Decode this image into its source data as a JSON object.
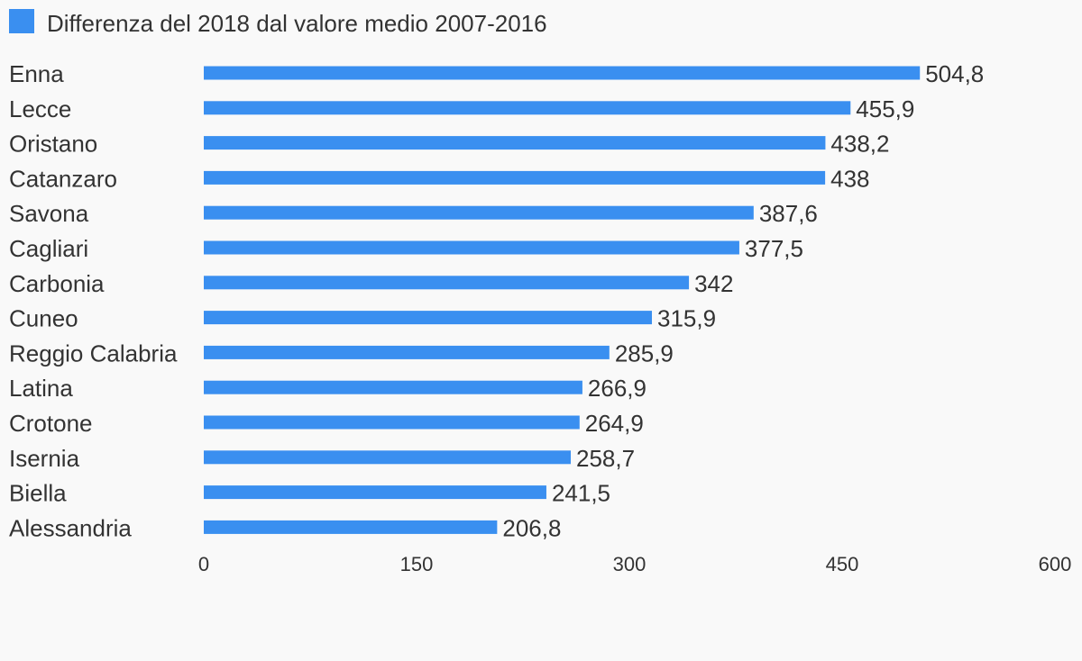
{
  "chart_data": {
    "type": "bar",
    "orientation": "horizontal",
    "legend": {
      "label": "Differenza del 2018 dal valore medio 2007-2016",
      "color": "#3a8ff0",
      "position": "top-left"
    },
    "categories": [
      "Enna",
      "Lecce",
      "Oristano",
      "Catanzaro",
      "Savona",
      "Cagliari",
      "Carbonia",
      "Cuneo",
      "Reggio Calabria",
      "Latina",
      "Crotone",
      "Isernia",
      "Biella",
      "Alessandria"
    ],
    "values": [
      504.8,
      455.9,
      438.2,
      438,
      387.6,
      377.5,
      342,
      315.9,
      285.9,
      266.9,
      264.9,
      258.7,
      241.5,
      206.8
    ],
    "value_labels": [
      "504,8",
      "455,9",
      "438,2",
      "438",
      "387,6",
      "377,5",
      "342",
      "315,9",
      "285,9",
      "266,9",
      "264,9",
      "258,7",
      "241,5",
      "206,8"
    ],
    "xlim": [
      0,
      600
    ],
    "xticks": [
      0,
      150,
      300,
      450,
      600
    ],
    "xtick_labels": [
      "0",
      "150",
      "300",
      "450",
      "600"
    ],
    "grid": false,
    "bar_color": "#3a8ff0"
  }
}
